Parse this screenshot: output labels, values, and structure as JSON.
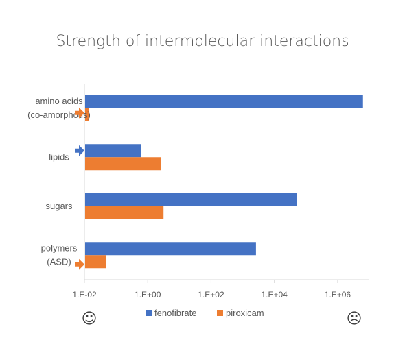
{
  "chart_data": {
    "type": "bar",
    "orientation": "horizontal",
    "title": "Strength of intermolecular interactions",
    "x_scale": "log",
    "xlim": [
      0.01,
      10000000
    ],
    "xticks": [
      "1.E-02",
      "1.E+00",
      "1.E+02",
      "1.E+04",
      "1.E+06"
    ],
    "grid": false,
    "legend_position": "bottom",
    "categories": [
      {
        "lines": [
          "amino acids",
          "(co-amorphous)"
        ],
        "arrow_series": "piroxicam"
      },
      {
        "lines": [
          "lipids"
        ],
        "arrow_series": "fenofibrate"
      },
      {
        "lines": [
          "sugars"
        ],
        "arrow_series": null
      },
      {
        "lines": [
          "polymers",
          "(ASD)"
        ],
        "arrow_series": "piroxicam"
      }
    ],
    "series": [
      {
        "name": "fenofibrate",
        "color": "#4472C4",
        "values": [
          6000000,
          0.6,
          50000,
          2500
        ]
      },
      {
        "name": "piroxicam",
        "color": "#ED7D31",
        "values": [
          0.013,
          2.5,
          3.0,
          0.045
        ]
      }
    ],
    "annotations": {
      "left_symbol": "☺",
      "right_symbol": "☹"
    }
  }
}
